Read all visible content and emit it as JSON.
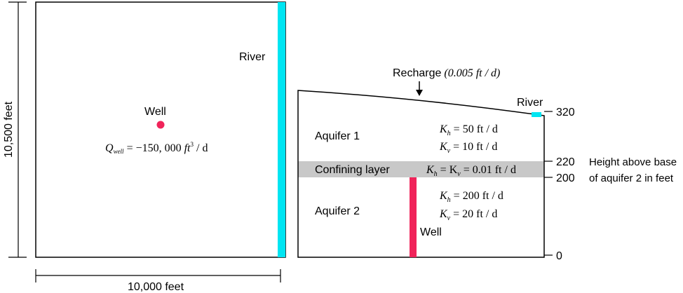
{
  "plan_view": {
    "width_label": "10,000 feet",
    "height_label": "10,500 feet",
    "river_label": "River",
    "well_label": "Well",
    "q_symbol": "Q",
    "q_subscript": "well",
    "q_equals": " = −150, 000 ",
    "q_unit_ft": "ft",
    "q_unit_exp": "3",
    "q_unit_rest": " / d"
  },
  "cross_section": {
    "recharge_label": "Recharge",
    "recharge_value": "(0.005 ft / d)",
    "river_label": "River",
    "aquifer1_label": "Aquifer 1",
    "confining_label": "Confining layer",
    "aquifer2_label": "Aquifer 2",
    "well_label": "Well",
    "aq1_kh": "K",
    "aq1_kh_sub": "h",
    "aq1_kh_val": " = 50 ft / d",
    "aq1_kv": "K",
    "aq1_kv_sub": "v",
    "aq1_kv_val": " = 10 ft / d",
    "conf_kh": "K",
    "conf_kh_sub": "h",
    "conf_mid": " = K",
    "conf_kv_sub": "v",
    "conf_val": " = 0.01 ft / d",
    "aq2_kh": "K",
    "aq2_kh_sub": "h",
    "aq2_kh_val": " = 200 ft / d",
    "aq2_kv": "K",
    "aq2_kv_sub": "v",
    "aq2_kv_val": " = 20 ft / d",
    "ticks": [
      "320",
      "220",
      "200",
      "0"
    ],
    "height_caption_line1": "Height above base",
    "height_caption_line2": "of aquifer 2 in feet"
  },
  "colors": {
    "river": "#00e5f2",
    "well": "#f0245a",
    "confining": "#c8c8c8",
    "line": "#000000"
  }
}
